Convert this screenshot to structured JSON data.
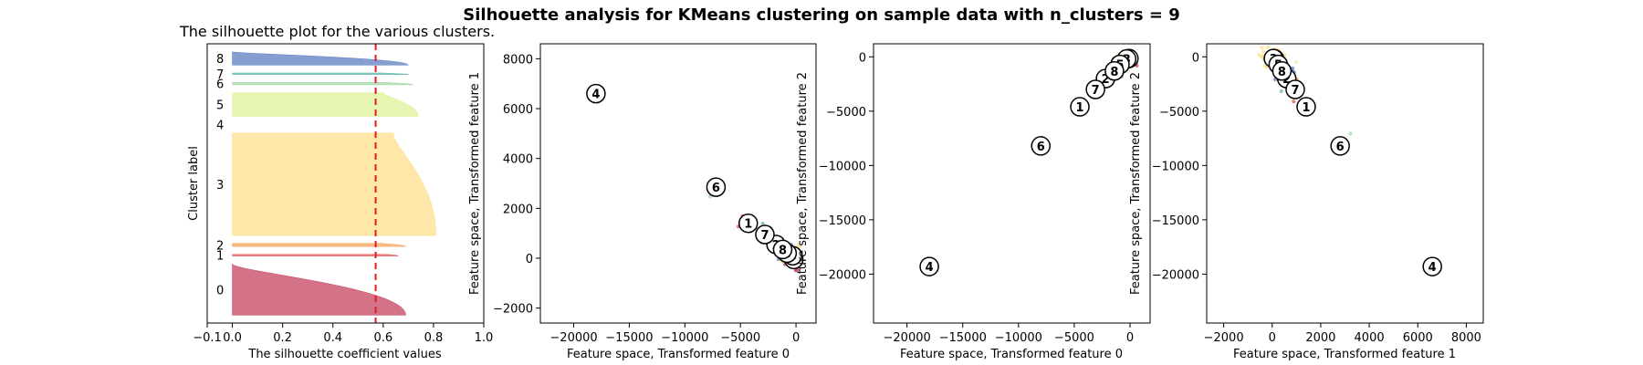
{
  "suptitle": "Silhouette analysis for KMeans clustering on sample data with n_clusters = 9",
  "chart_data": [
    {
      "type": "silhouette",
      "title": "The silhouette plot for the various clusters.",
      "xlabel": "The silhouette coefficient values",
      "ylabel": "Cluster label",
      "xlim": [
        -0.1,
        1.0
      ],
      "xticks": [
        "−0.1",
        "0.0",
        "0.2",
        "0.4",
        "0.6",
        "0.8",
        "1.0"
      ],
      "xtick_values": [
        -0.1,
        0.0,
        0.2,
        0.4,
        0.6,
        0.8,
        1.0
      ],
      "average_silhouette": 0.57,
      "clusters": [
        {
          "label": "0",
          "size": 65,
          "max": 0.69,
          "min": 0.0,
          "color": "#c6435f"
        },
        {
          "label": "1",
          "size": 2,
          "max": 0.66,
          "min": 0.62,
          "color": "#e5524a"
        },
        {
          "label": "2",
          "size": 4,
          "max": 0.69,
          "min": 0.6,
          "color": "#f6a15a"
        },
        {
          "label": "3",
          "size": 130,
          "max": 0.81,
          "min": 0.64,
          "color": "#fddf8b"
        },
        {
          "label": "4",
          "size": 1,
          "max": 0.0,
          "min": 0.0,
          "color": "#fdfebf"
        },
        {
          "label": "5",
          "size": 30,
          "max": 0.74,
          "min": 0.6,
          "color": "#dff29a"
        },
        {
          "label": "6",
          "size": 3,
          "max": 0.72,
          "min": 0.62,
          "color": "#a1d8a4"
        },
        {
          "label": "7",
          "size": 2,
          "max": 0.7,
          "min": 0.6,
          "color": "#5fb9aa"
        },
        {
          "label": "8",
          "size": 17,
          "max": 0.7,
          "min": 0.0,
          "color": "#5f7fc0"
        }
      ]
    },
    {
      "type": "scatter",
      "xlabel": "Feature space, Transformed feature 0",
      "ylabel": "Feature space, Transformed feature 1",
      "xlim": [
        -23000,
        1800
      ],
      "ylim": [
        -2600,
        8600
      ],
      "xticks": [
        "−20000",
        "−15000",
        "−10000",
        "−5000",
        "0"
      ],
      "xtick_values": [
        -20000,
        -15000,
        -10000,
        -5000,
        0
      ],
      "yticks": [
        "−2000",
        "0",
        "2000",
        "4000",
        "6000",
        "8000"
      ],
      "ytick_values": [
        -2000,
        0,
        2000,
        4000,
        6000,
        8000
      ],
      "centers": [
        {
          "label": "0",
          "x": -200,
          "y": -50
        },
        {
          "label": "1",
          "x": -4300,
          "y": 1400
        },
        {
          "label": "2",
          "x": -1800,
          "y": 550
        },
        {
          "label": "3",
          "x": -300,
          "y": 100
        },
        {
          "label": "4",
          "x": -18000,
          "y": 6600
        },
        {
          "label": "5",
          "x": -800,
          "y": 200
        },
        {
          "label": "6",
          "x": -7200,
          "y": 2850
        },
        {
          "label": "7",
          "x": -2800,
          "y": 950
        },
        {
          "label": "8",
          "x": -1200,
          "y": 350
        }
      ]
    },
    {
      "type": "scatter",
      "xlabel": "Feature space, Transformed feature 0",
      "ylabel": "Feature space, Transformed feature 2",
      "xlim": [
        -23000,
        1800
      ],
      "ylim": [
        -24500,
        1200
      ],
      "xticks": [
        "−20000",
        "−15000",
        "−10000",
        "−5000",
        "0"
      ],
      "xtick_values": [
        -20000,
        -15000,
        -10000,
        -5000,
        0
      ],
      "yticks": [
        "−20000",
        "−15000",
        "−10000",
        "−5000",
        "0"
      ],
      "ytick_values": [
        -20000,
        -15000,
        -10000,
        -5000,
        0
      ],
      "centers": [
        {
          "label": "0",
          "x": -100,
          "y": -150
        },
        {
          "label": "1",
          "x": -4500,
          "y": -4600
        },
        {
          "label": "2",
          "x": -2200,
          "y": -2000
        },
        {
          "label": "3",
          "x": -300,
          "y": -200
        },
        {
          "label": "4",
          "x": -18000,
          "y": -19300
        },
        {
          "label": "5",
          "x": -900,
          "y": -700
        },
        {
          "label": "6",
          "x": -8000,
          "y": -8200
        },
        {
          "label": "7",
          "x": -3100,
          "y": -3000
        },
        {
          "label": "8",
          "x": -1400,
          "y": -1300
        }
      ]
    },
    {
      "type": "scatter",
      "xlabel": "Feature space, Transformed feature 1",
      "ylabel": "Feature space, Transformed feature 2",
      "xlim": [
        -2700,
        8700
      ],
      "ylim": [
        -24500,
        1200
      ],
      "xticks": [
        "−2000",
        "0",
        "2000",
        "4000",
        "6000",
        "8000"
      ],
      "xtick_values": [
        -2000,
        0,
        2000,
        4000,
        6000,
        8000
      ],
      "yticks": [
        "−20000",
        "−15000",
        "−10000",
        "−5000",
        "0"
      ],
      "ytick_values": [
        -20000,
        -15000,
        -10000,
        -5000,
        0
      ],
      "centers": [
        {
          "label": "0",
          "x": 100,
          "y": -200
        },
        {
          "label": "1",
          "x": 1400,
          "y": -4600
        },
        {
          "label": "2",
          "x": 600,
          "y": -2000
        },
        {
          "label": "3",
          "x": 50,
          "y": -150
        },
        {
          "label": "4",
          "x": 6600,
          "y": -19300
        },
        {
          "label": "5",
          "x": 250,
          "y": -700
        },
        {
          "label": "6",
          "x": 2800,
          "y": -8200
        },
        {
          "label": "7",
          "x": 950,
          "y": -3000
        },
        {
          "label": "8",
          "x": 400,
          "y": -1300
        }
      ]
    }
  ]
}
